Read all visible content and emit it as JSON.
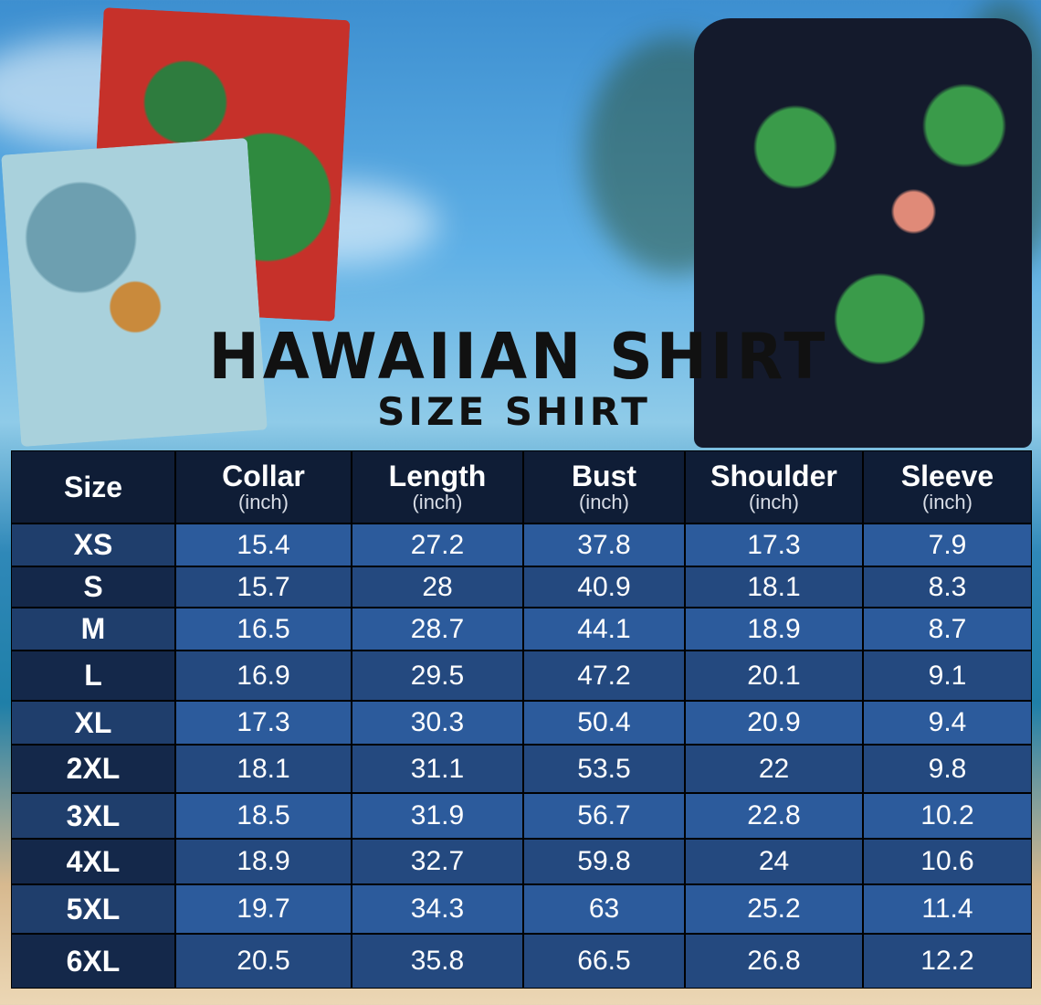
{
  "title": "HAWAIIAN SHIRT",
  "subtitle": "SIZE SHIRT",
  "colors": {
    "header": "#0f1d36",
    "row_light": "#2c5b9c",
    "row_dark": "#24497f",
    "size_light": "#1f3e6c",
    "size_dark": "#14284a"
  },
  "table": {
    "headers": [
      {
        "label": "Size",
        "unit": ""
      },
      {
        "label": "Collar",
        "unit": "(inch)"
      },
      {
        "label": "Length",
        "unit": "(inch)"
      },
      {
        "label": "Bust",
        "unit": "(inch)"
      },
      {
        "label": "Shoulder",
        "unit": "(inch)"
      },
      {
        "label": "Sleeve",
        "unit": "(inch)"
      }
    ],
    "rows": [
      [
        "XS",
        "15.4",
        "27.2",
        "37.8",
        "17.3",
        "7.9"
      ],
      [
        "S",
        "15.7",
        "28",
        "40.9",
        "18.1",
        "8.3"
      ],
      [
        "M",
        "16.5",
        "28.7",
        "44.1",
        "18.9",
        "8.7"
      ],
      [
        "L",
        "16.9",
        "29.5",
        "47.2",
        "20.1",
        "9.1"
      ],
      [
        "XL",
        "17.3",
        "30.3",
        "50.4",
        "20.9",
        "9.4"
      ],
      [
        "2XL",
        "18.1",
        "31.1",
        "53.5",
        "22",
        "9.8"
      ],
      [
        "3XL",
        "18.5",
        "31.9",
        "56.7",
        "22.8",
        "10.2"
      ],
      [
        "4XL",
        "18.9",
        "32.7",
        "59.8",
        "24",
        "10.6"
      ],
      [
        "5XL",
        "19.7",
        "34.3",
        "63",
        "25.2",
        "11.4"
      ],
      [
        "6XL",
        "20.5",
        "35.8",
        "66.5",
        "26.8",
        "12.2"
      ]
    ]
  }
}
